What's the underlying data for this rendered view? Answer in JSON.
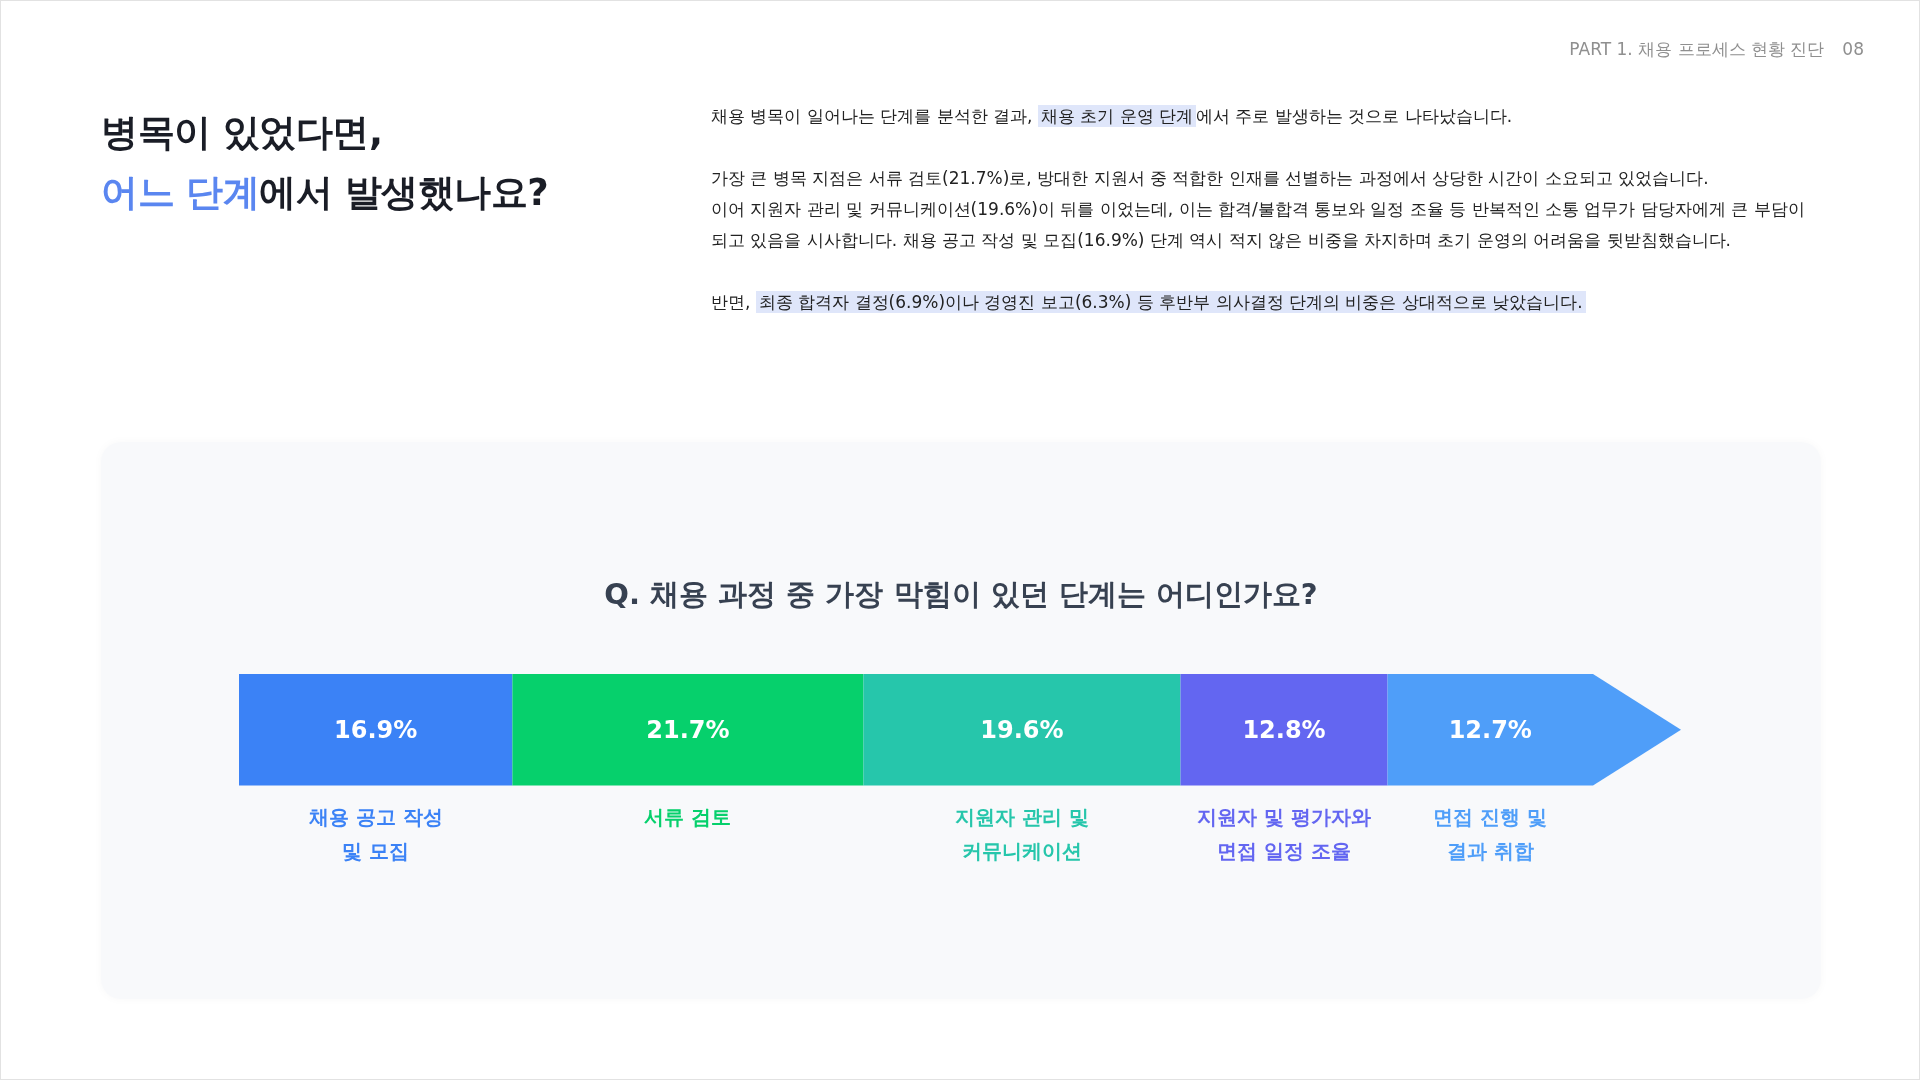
{
  "chart_data": {
    "type": "bar",
    "orientation": "horizontal",
    "stacked": true,
    "title": "Q. 채용 과정 중 가장 막힘이 있던 단계는 어디인가요?",
    "annotations": [
      "PART 1. 채용 프로세스 현황 진단",
      "08",
      "병목이 있었다면,",
      "어느 단계",
      "에서 발생했나요?",
      "채용 병목이 일어나는 단계를 분석한 결과,",
      "채용 초기 운영 단계",
      "에서 주로 발생하는 것으로 나타났습니다.",
      "가장 큰 병목 지점은 서류 검토(21.7%)로, 방대한 지원서 중 적합한 인재를 선별하는 과정에서 상당한 시간이 소요되고 있었습니다.",
      "이어 지원자 관리 및 커뮤니케이션(19.6%)이 뒤를 이었는데, 이는 합격/불합격 통보와 일정 조율 등 반복적인 소통 업무가 담당자에게 큰 부담이 되고 있음을 시사합니다. 채용 공고 작성 및 모집(16.9%) 단계 역시 적지 않은 비중을 차지하며 초기 운영의 어려움을 뒷받침했습니다.",
      "반면,",
      "최종 합격자 결정(6.9%)이나 경영진 보고(6.3%) 등 후반부 의사결정 단계의 비중은 상대적으로 낮았습니다."
    ],
    "categories": [
      null
    ],
    "series": [
      {
        "name": "채용 공고 작성\n및 모집",
        "color": "#3b82f6",
        "values": [
          16.9
        ],
        "value_labels": [
          "16.9%"
        ]
      },
      {
        "name": "서류 검토",
        "color": "#06d06c",
        "values": [
          21.7
        ],
        "value_labels": [
          "21.7%"
        ]
      },
      {
        "name": "지원자 관리 및\n커뮤니케이션",
        "color": "#26c6ab",
        "values": [
          19.6
        ],
        "value_labels": [
          "19.6%"
        ]
      },
      {
        "name": "지원자 및 평가자와\n면접 일정 조율",
        "color": "#6366f1",
        "values": [
          12.8
        ],
        "value_labels": [
          "12.8%"
        ]
      },
      {
        "name": "면접 진행 및\n결과 취합",
        "color": "#4f9ef9",
        "values": [
          12.7
        ],
        "value_labels": [
          "12.7%"
        ]
      }
    ]
  }
}
